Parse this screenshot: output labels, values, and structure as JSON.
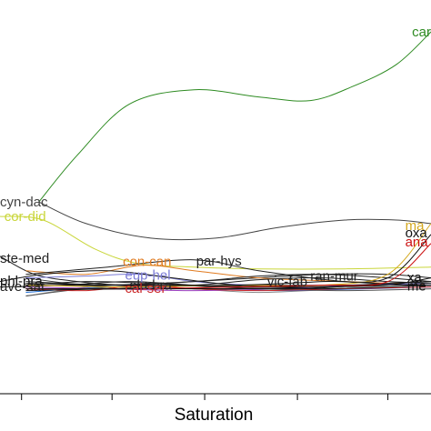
{
  "chart_data": {
    "type": "line",
    "title": "",
    "xlabel": "Saturation",
    "ylabel": "",
    "series": [
      {
        "name": "car",
        "label": "car",
        "color": "#2e8b22",
        "points": [
          [
            0.09,
            0.53
          ],
          [
            0.18,
            0.66
          ],
          [
            0.3,
            0.8
          ],
          [
            0.45,
            0.84
          ],
          [
            0.6,
            0.82
          ],
          [
            0.72,
            0.81
          ],
          [
            0.82,
            0.85
          ],
          [
            0.92,
            0.91
          ],
          [
            1.0,
            1.0
          ]
        ],
        "label_at": [
          1.0,
          1.0
        ],
        "anchor": "end"
      },
      {
        "name": "cyn-dac",
        "label": "cyn-dac",
        "color": "#444444",
        "points": [
          [
            0.09,
            0.53
          ],
          [
            0.2,
            0.47
          ],
          [
            0.35,
            0.43
          ],
          [
            0.5,
            0.43
          ],
          [
            0.65,
            0.46
          ],
          [
            0.8,
            0.48
          ],
          [
            0.92,
            0.48
          ],
          [
            1.0,
            0.47
          ]
        ],
        "label_at": [
          0.0,
          0.53
        ],
        "anchor": "start"
      },
      {
        "name": "cor-did",
        "label": "cor-did",
        "color": "#c9d63a",
        "points": [
          [
            0.0,
            0.49
          ],
          [
            0.1,
            0.48
          ],
          [
            0.22,
            0.4
          ],
          [
            0.32,
            0.36
          ],
          [
            0.45,
            0.35
          ],
          [
            0.6,
            0.345
          ],
          [
            0.8,
            0.345
          ],
          [
            1.0,
            0.35
          ]
        ],
        "label_at": [
          0.01,
          0.49
        ],
        "anchor": "start"
      },
      {
        "name": "ste-med",
        "label": "ste-med",
        "color": "#222222",
        "points": [
          [
            0.0,
            0.38
          ],
          [
            0.08,
            0.33
          ],
          [
            0.18,
            0.31
          ],
          [
            0.3,
            0.3
          ],
          [
            0.45,
            0.31
          ],
          [
            0.6,
            0.32
          ],
          [
            0.75,
            0.33
          ],
          [
            0.9,
            0.33
          ],
          [
            1.0,
            0.32
          ]
        ],
        "label_at": [
          0.0,
          0.375
        ],
        "anchor": "start"
      },
      {
        "name": "con-can",
        "label": "con-can",
        "color": "#e07a1f",
        "points": [
          [
            0.06,
            0.34
          ],
          [
            0.2,
            0.33
          ],
          [
            0.33,
            0.355
          ],
          [
            0.45,
            0.34
          ],
          [
            0.6,
            0.32
          ],
          [
            0.8,
            0.31
          ],
          [
            1.0,
            0.3
          ]
        ],
        "label_at": [
          0.285,
          0.365
        ],
        "anchor": "start"
      },
      {
        "name": "par-hys",
        "label": "par-hys",
        "color": "#222222",
        "points": [
          [
            0.06,
            0.33
          ],
          [
            0.25,
            0.35
          ],
          [
            0.45,
            0.37
          ],
          [
            0.6,
            0.34
          ],
          [
            0.8,
            0.31
          ],
          [
            1.0,
            0.3
          ]
        ],
        "label_at": [
          0.455,
          0.367
        ],
        "anchor": "start"
      },
      {
        "name": "eup-hel",
        "label": "eup-hel",
        "color": "#7b7bd6",
        "points": [
          [
            0.06,
            0.32
          ],
          [
            0.2,
            0.325
          ],
          [
            0.33,
            0.33
          ],
          [
            0.45,
            0.31
          ],
          [
            0.6,
            0.3
          ],
          [
            0.8,
            0.3
          ],
          [
            1.0,
            0.305
          ]
        ],
        "label_at": [
          0.29,
          0.328
        ],
        "anchor": "start"
      },
      {
        "name": "phl-pra",
        "label": "phl-pra",
        "color": "#111111",
        "points": [
          [
            0.0,
            0.31
          ],
          [
            0.1,
            0.33
          ],
          [
            0.25,
            0.34
          ],
          [
            0.4,
            0.32
          ],
          [
            0.55,
            0.3
          ],
          [
            0.75,
            0.295
          ],
          [
            0.9,
            0.305
          ],
          [
            1.0,
            0.31
          ]
        ],
        "label_at": [
          0.0,
          0.312
        ],
        "anchor": "start"
      },
      {
        "name": "ave-sat",
        "label": "ave-sat",
        "color": "#222222",
        "points": [
          [
            0.0,
            0.295
          ],
          [
            0.15,
            0.3
          ],
          [
            0.3,
            0.31
          ],
          [
            0.45,
            0.3
          ],
          [
            0.6,
            0.295
          ],
          [
            0.8,
            0.3
          ],
          [
            1.0,
            0.3
          ]
        ],
        "label_at": [
          0.0,
          0.296
        ],
        "anchor": "start"
      },
      {
        "name": "alu-bra",
        "label": "alu-bra",
        "color": "#222222",
        "points": [
          [
            0.06,
            0.3
          ],
          [
            0.2,
            0.31
          ],
          [
            0.35,
            0.305
          ],
          [
            0.5,
            0.295
          ],
          [
            0.7,
            0.29
          ],
          [
            0.85,
            0.3
          ],
          [
            1.0,
            0.3
          ]
        ],
        "label_at": [
          0.3,
          0.3
        ],
        "anchor": "start"
      },
      {
        "name": "cal-ser",
        "label": "cal-ser",
        "color": "#cc2a2a",
        "points": [
          [
            0.06,
            0.29
          ],
          [
            0.2,
            0.285
          ],
          [
            0.33,
            0.3
          ],
          [
            0.45,
            0.29
          ],
          [
            0.6,
            0.285
          ],
          [
            0.8,
            0.29
          ],
          [
            1.0,
            0.295
          ]
        ],
        "label_at": [
          0.29,
          0.292
        ],
        "anchor": "start"
      },
      {
        "name": "vic-fab",
        "label": "vic-fab",
        "color": "#222222",
        "points": [
          [
            0.06,
            0.31
          ],
          [
            0.25,
            0.3
          ],
          [
            0.45,
            0.3
          ],
          [
            0.6,
            0.315
          ],
          [
            0.75,
            0.32
          ],
          [
            0.9,
            0.31
          ],
          [
            1.0,
            0.305
          ]
        ],
        "label_at": [
          0.62,
          0.31
        ],
        "anchor": "start"
      },
      {
        "name": "ran-mur",
        "label": "ran-mur",
        "color": "#222222",
        "points": [
          [
            0.06,
            0.3
          ],
          [
            0.25,
            0.3
          ],
          [
            0.45,
            0.31
          ],
          [
            0.6,
            0.325
          ],
          [
            0.75,
            0.33
          ],
          [
            0.9,
            0.32
          ],
          [
            1.0,
            0.31
          ]
        ],
        "label_at": [
          0.72,
          0.325
        ],
        "anchor": "start"
      },
      {
        "name": "mal",
        "label": "ma",
        "color": "#d4a81e",
        "points": [
          [
            0.06,
            0.3
          ],
          [
            0.3,
            0.295
          ],
          [
            0.55,
            0.3
          ],
          [
            0.75,
            0.3
          ],
          [
            0.9,
            0.33
          ],
          [
            1.0,
            0.47
          ]
        ],
        "label_at": [
          0.94,
          0.465
        ],
        "anchor": "start"
      },
      {
        "name": "oxa",
        "label": "oxa",
        "color": "#111111",
        "points": [
          [
            0.06,
            0.305
          ],
          [
            0.3,
            0.3
          ],
          [
            0.55,
            0.3
          ],
          [
            0.75,
            0.31
          ],
          [
            0.9,
            0.32
          ],
          [
            1.0,
            0.44
          ]
        ],
        "label_at": [
          0.94,
          0.445
        ],
        "anchor": "start"
      },
      {
        "name": "ana",
        "label": "ana",
        "color": "#cc1111",
        "points": [
          [
            0.06,
            0.29
          ],
          [
            0.3,
            0.29
          ],
          [
            0.55,
            0.295
          ],
          [
            0.75,
            0.3
          ],
          [
            0.9,
            0.31
          ],
          [
            1.0,
            0.415
          ]
        ],
        "label_at": [
          0.94,
          0.42
        ],
        "anchor": "start"
      },
      {
        "name": "xa",
        "label": "xa",
        "color": "#111111",
        "points": [
          [
            0.06,
            0.29
          ],
          [
            0.3,
            0.29
          ],
          [
            0.55,
            0.29
          ],
          [
            0.75,
            0.295
          ],
          [
            0.9,
            0.3
          ],
          [
            1.0,
            0.32
          ]
        ],
        "label_at": [
          0.945,
          0.322
        ],
        "anchor": "start"
      },
      {
        "name": "me",
        "label": "me",
        "color": "#111111",
        "points": [
          [
            0.06,
            0.285
          ],
          [
            0.3,
            0.29
          ],
          [
            0.55,
            0.29
          ],
          [
            0.75,
            0.29
          ],
          [
            0.9,
            0.295
          ],
          [
            1.0,
            0.3
          ]
        ],
        "label_at": [
          0.945,
          0.298
        ],
        "anchor": "start"
      }
    ],
    "extra_lines": [
      {
        "color": "#8a8a8a",
        "points": [
          [
            0.06,
            0.27
          ],
          [
            0.25,
            0.3
          ],
          [
            0.45,
            0.29
          ],
          [
            0.6,
            0.28
          ],
          [
            0.8,
            0.29
          ],
          [
            1.0,
            0.3
          ]
        ]
      },
      {
        "color": "#1e6fd9",
        "points": [
          [
            0.06,
            0.28
          ],
          [
            0.25,
            0.295
          ],
          [
            0.45,
            0.29
          ],
          [
            0.65,
            0.285
          ],
          [
            0.85,
            0.29
          ],
          [
            1.0,
            0.295
          ]
        ]
      },
      {
        "color": "#9b3fbf",
        "points": [
          [
            0.06,
            0.295
          ],
          [
            0.25,
            0.29
          ],
          [
            0.45,
            0.285
          ],
          [
            0.65,
            0.29
          ],
          [
            0.85,
            0.3
          ],
          [
            1.0,
            0.3
          ]
        ]
      },
      {
        "color": "#555555",
        "points": [
          [
            0.06,
            0.27
          ],
          [
            0.2,
            0.29
          ],
          [
            0.4,
            0.3
          ],
          [
            0.6,
            0.29
          ],
          [
            0.8,
            0.285
          ],
          [
            1.0,
            0.29
          ]
        ]
      },
      {
        "color": "#333333",
        "points": [
          [
            0.06,
            0.32
          ],
          [
            0.2,
            0.3
          ],
          [
            0.4,
            0.29
          ],
          [
            0.6,
            0.3
          ],
          [
            0.8,
            0.3
          ],
          [
            1.0,
            0.31
          ]
        ]
      }
    ],
    "xlim": [
      0,
      1
    ],
    "ylim": [
      0,
      1
    ],
    "x_ticks": [
      0.05,
      0.26,
      0.475,
      0.69,
      0.9
    ],
    "grid": false,
    "legend": "none"
  }
}
